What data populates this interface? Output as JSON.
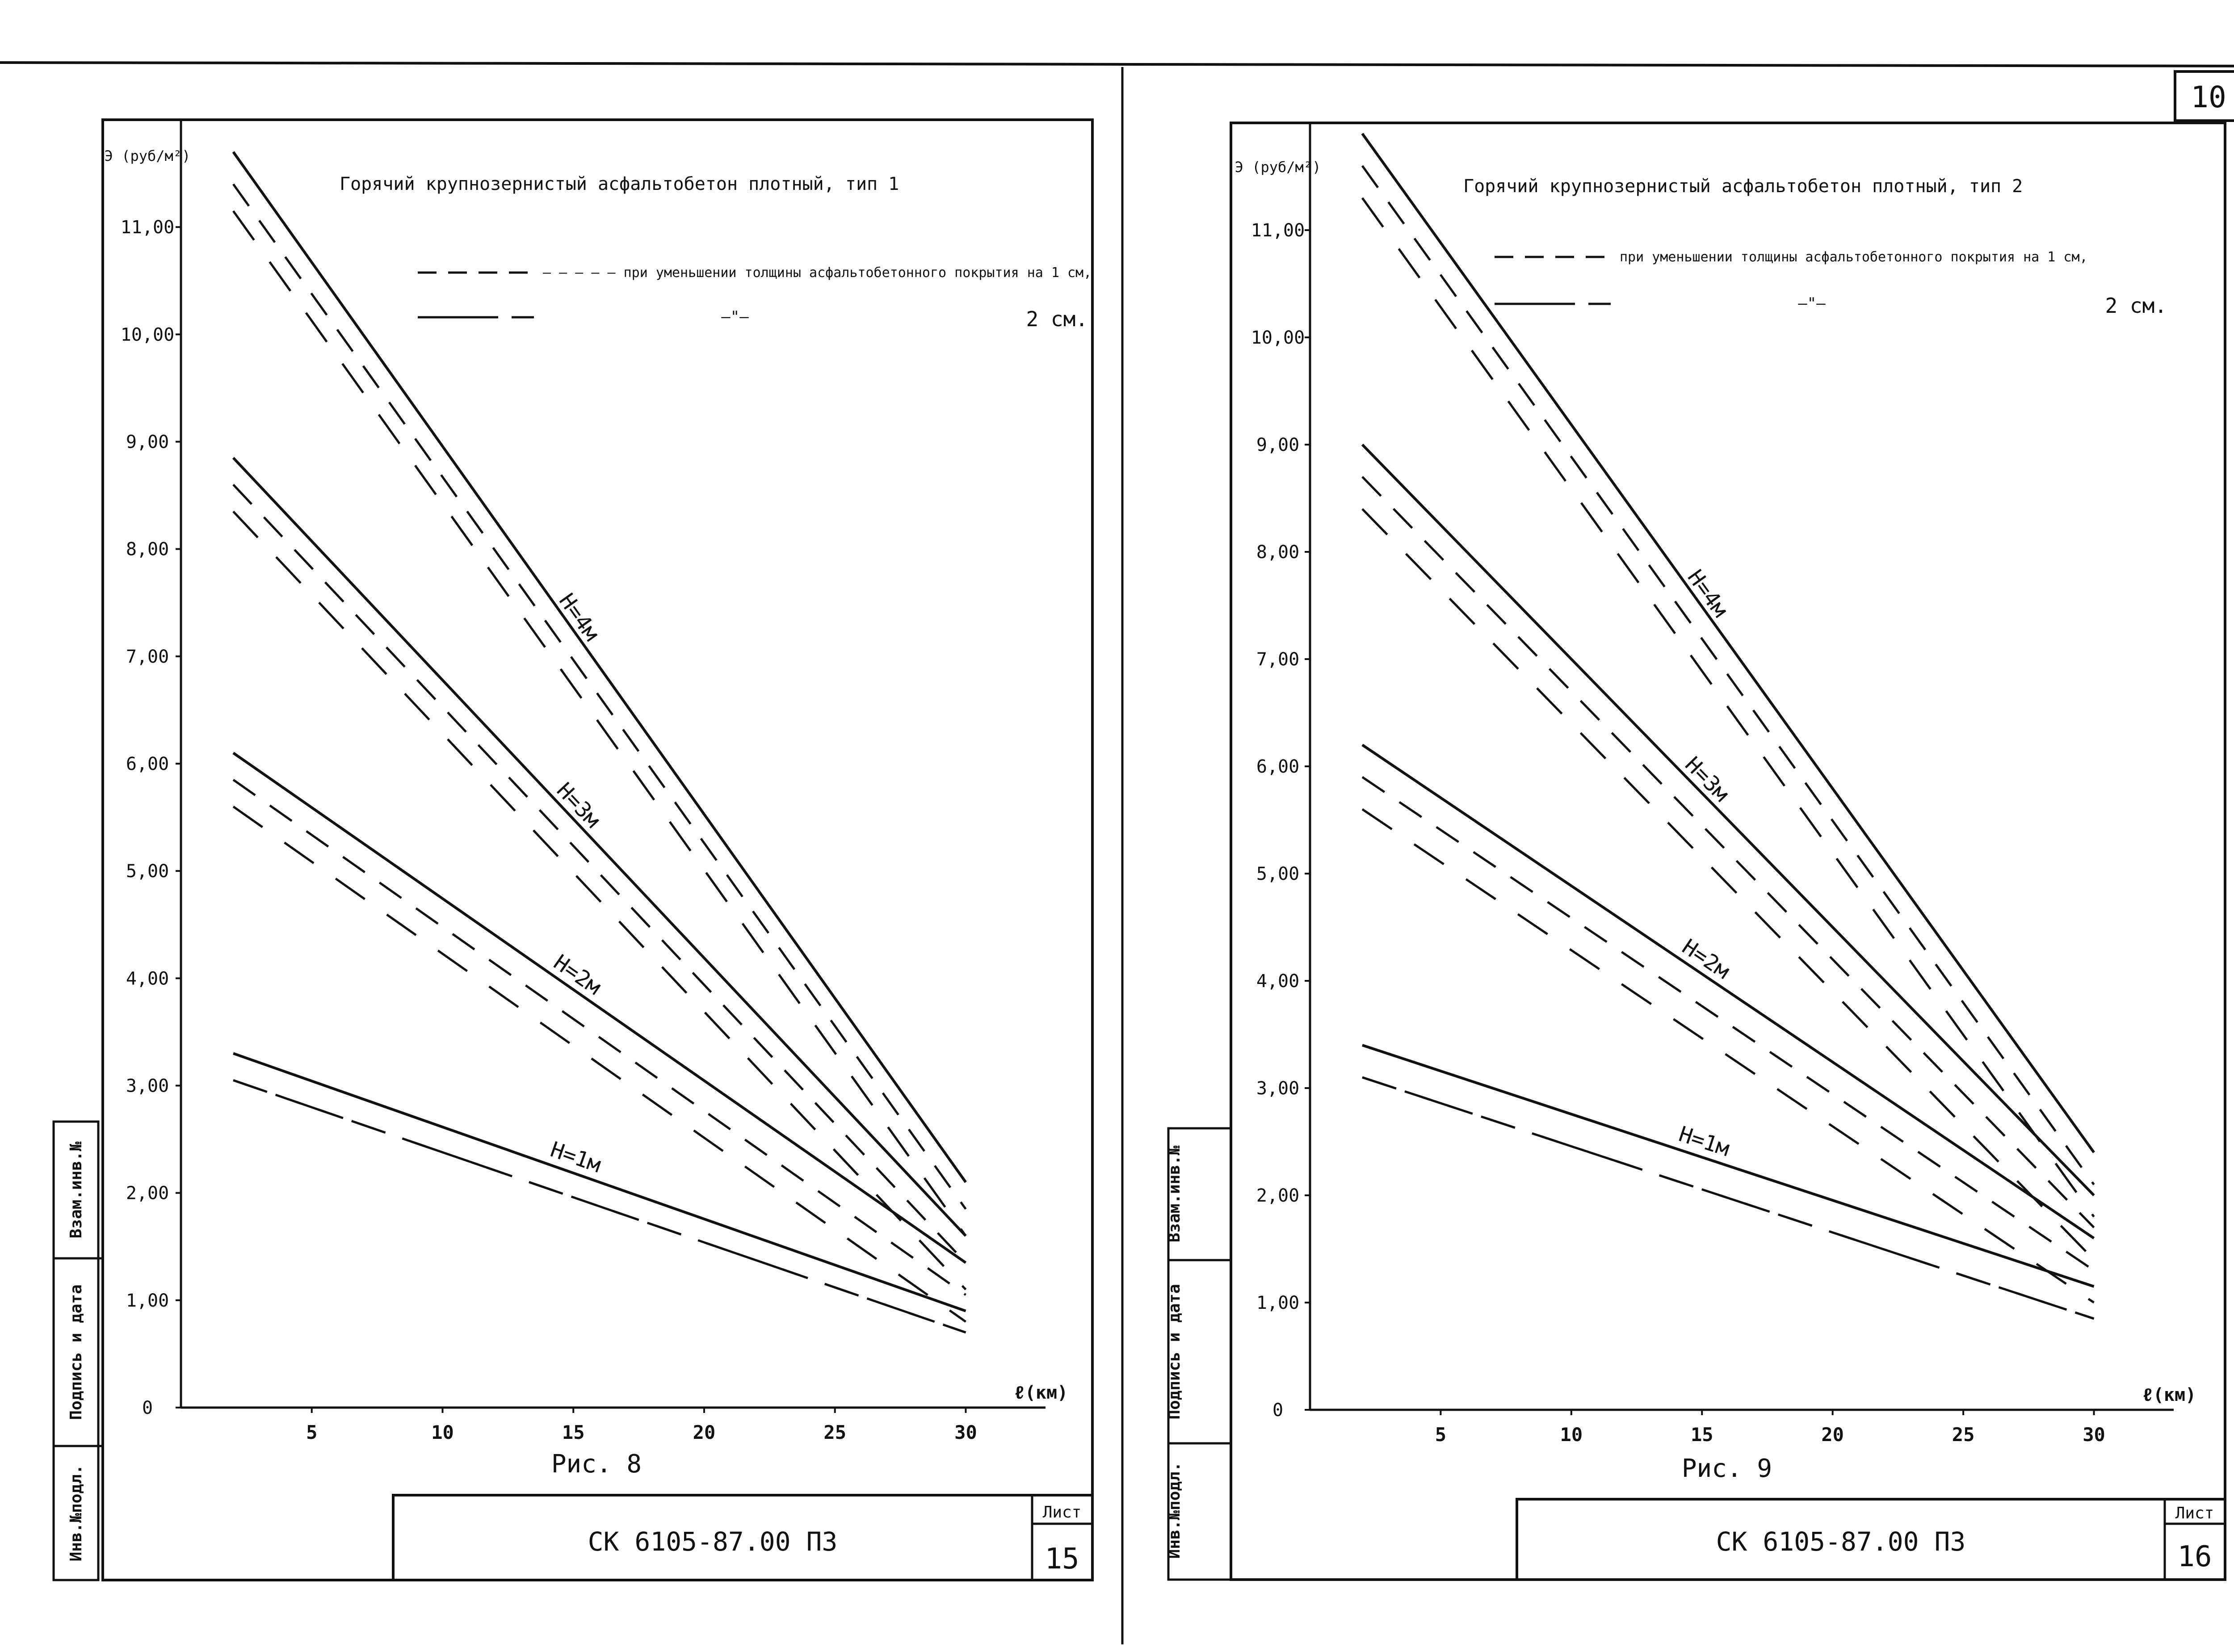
{
  "page_label": "10",
  "figures": [
    {
      "sheet_number": "15",
      "doc_code": "СК 6105-87.00 ПЗ",
      "sheet_label": "Лист",
      "caption": "Рис. 8"
    },
    {
      "sheet_number": "16",
      "doc_code": "СК 6105-87.00 ПЗ",
      "sheet_label": "Лист",
      "caption": "Рис. 9"
    }
  ],
  "side_stamp": [
    "Инв.№подл.",
    "Подпись и дата",
    "Взам.инв.№"
  ],
  "chart_data": [
    {
      "type": "line",
      "title": "Горячий крупнозернистый асфальтобетон плотный, тип 1",
      "ylabel": "Э (руб/м²)",
      "xlabel": "ℓ(км)",
      "ylim": [
        0,
        12
      ],
      "xlim": [
        0,
        31
      ],
      "x_ticks": [
        5,
        10,
        15,
        20,
        25,
        30
      ],
      "x_tick_labels": [
        "5",
        "10",
        "15",
        "20",
        "25",
        "30"
      ],
      "y_ticks": [
        0,
        1,
        2,
        3,
        4,
        5,
        6,
        7,
        8,
        9,
        10,
        11
      ],
      "y_tick_labels": [
        "0",
        "1,00",
        "2,00",
        "3,00",
        "4,00",
        "5,00",
        "6,00",
        "7,00",
        "8,00",
        "9,00",
        "10,00",
        "11,00"
      ],
      "legend": {
        "line1": "— — — — – при уменьшении толщины асфальтобетонного покрытия на 1 см,",
        "line2_mid": "—\"—",
        "line2_tail": "2 см."
      },
      "series": [
        {
          "name": "H=1м",
          "style": "solid",
          "x": [
            2,
            30
          ],
          "values": [
            3.3,
            0.9
          ]
        },
        {
          "name": "",
          "style": "dashed",
          "x": [
            2,
            30
          ],
          "values": [
            3.05,
            0.7
          ]
        },
        {
          "name": "",
          "style": "dashed",
          "x": [
            2,
            30
          ],
          "values": [
            3.05,
            0.7
          ]
        },
        {
          "name": "H=2м",
          "style": "solid",
          "x": [
            2,
            30
          ],
          "values": [
            6.1,
            1.35
          ]
        },
        {
          "name": "",
          "style": "dashed",
          "x": [
            2,
            30
          ],
          "values": [
            5.85,
            1.05
          ]
        },
        {
          "name": "",
          "style": "dashed",
          "x": [
            2,
            30
          ],
          "values": [
            5.6,
            0.8
          ]
        },
        {
          "name": "H=3м",
          "style": "solid",
          "x": [
            2,
            30
          ],
          "values": [
            8.85,
            1.6
          ]
        },
        {
          "name": "",
          "style": "dashed",
          "x": [
            2,
            30
          ],
          "values": [
            8.6,
            1.35
          ]
        },
        {
          "name": "",
          "style": "dashed",
          "x": [
            2,
            30
          ],
          "values": [
            8.35,
            1.1
          ]
        },
        {
          "name": "H=4м",
          "style": "solid",
          "x": [
            2,
            30
          ],
          "values": [
            11.7,
            2.1
          ]
        },
        {
          "name": "",
          "style": "dashed",
          "x": [
            2,
            30
          ],
          "values": [
            11.4,
            1.85
          ]
        },
        {
          "name": "",
          "style": "dashed",
          "x": [
            2,
            30
          ],
          "values": [
            11.15,
            1.6
          ]
        }
      ]
    },
    {
      "type": "line",
      "title": "Горячий крупнозернистый асфальтобетон плотный, тип 2",
      "ylabel": "Э (руб/м²)",
      "xlabel": "ℓ(км)",
      "ylim": [
        0,
        12
      ],
      "xlim": [
        0,
        31
      ],
      "x_ticks": [
        5,
        10,
        15,
        20,
        25,
        30
      ],
      "x_tick_labels": [
        "5",
        "10",
        "15",
        "20",
        "25",
        "30"
      ],
      "y_ticks": [
        0,
        1,
        2,
        3,
        4,
        5,
        6,
        7,
        8,
        9,
        10,
        11
      ],
      "y_tick_labels": [
        "0",
        "1,00",
        "2,00",
        "3,00",
        "4,00",
        "5,00",
        "6,00",
        "7,00",
        "8,00",
        "9,00",
        "10,00",
        "11,00"
      ],
      "legend": {
        "line1": "при уменьшении толщины асфальтобетонного покрытия на 1 см,",
        "line2_mid": "—\"—",
        "line2_tail": "2 см."
      },
      "series": [
        {
          "name": "H=1м",
          "style": "solid",
          "x": [
            2,
            30
          ],
          "values": [
            3.4,
            1.15
          ]
        },
        {
          "name": "",
          "style": "dashed",
          "x": [
            2,
            30
          ],
          "values": [
            3.1,
            0.85
          ]
        },
        {
          "name": "",
          "style": "dashed",
          "x": [
            2,
            30
          ],
          "values": [
            3.1,
            0.85
          ]
        },
        {
          "name": "H=2м",
          "style": "solid",
          "x": [
            2,
            30
          ],
          "values": [
            6.2,
            1.6
          ]
        },
        {
          "name": "",
          "style": "dashed",
          "x": [
            2,
            30
          ],
          "values": [
            5.9,
            1.3
          ]
        },
        {
          "name": "",
          "style": "dashed",
          "x": [
            2,
            30
          ],
          "values": [
            5.6,
            1.0
          ]
        },
        {
          "name": "H=3м",
          "style": "solid",
          "x": [
            2,
            30
          ],
          "values": [
            9.0,
            2.0
          ]
        },
        {
          "name": "",
          "style": "dashed",
          "x": [
            2,
            30
          ],
          "values": [
            8.7,
            1.7
          ]
        },
        {
          "name": "",
          "style": "dashed",
          "x": [
            2,
            30
          ],
          "values": [
            8.4,
            1.4
          ]
        },
        {
          "name": "H=4м",
          "style": "solid",
          "x": [
            2,
            30
          ],
          "values": [
            11.9,
            2.4
          ]
        },
        {
          "name": "",
          "style": "dashed",
          "x": [
            2,
            30
          ],
          "values": [
            11.6,
            2.1
          ]
        },
        {
          "name": "",
          "style": "dashed",
          "x": [
            2,
            30
          ],
          "values": [
            11.3,
            1.8
          ]
        }
      ]
    }
  ]
}
